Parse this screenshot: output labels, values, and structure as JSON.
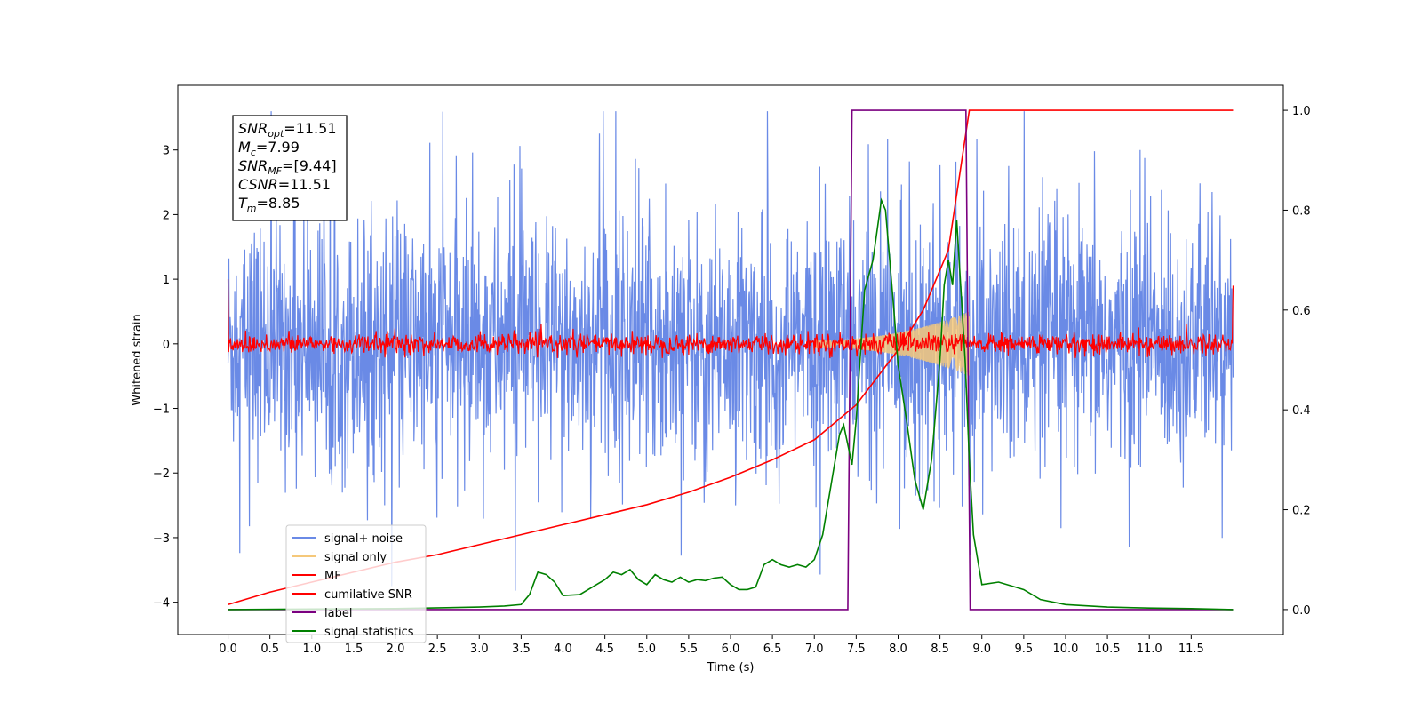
{
  "chart_data": {
    "type": "line",
    "title": "",
    "xlabel": "Time (s)",
    "ylabel": "Whitened strain",
    "xlim": [
      -0.6,
      12.6
    ],
    "ylim": [
      -4.5,
      4.0
    ],
    "y2lim": [
      -0.05,
      1.05
    ],
    "xticks": [
      "0.0",
      "0.5",
      "1.0",
      "1.5",
      "2.0",
      "2.5",
      "3.0",
      "3.5",
      "4.0",
      "4.5",
      "5.0",
      "5.5",
      "6.0",
      "6.5",
      "7.0",
      "7.5",
      "8.0",
      "8.5",
      "9.0",
      "9.5",
      "10.0",
      "10.5",
      "11.0",
      "11.5"
    ],
    "yticks": [
      "3",
      "2",
      "1",
      "0",
      "−1",
      "−2",
      "−3",
      "−4"
    ],
    "y2ticks": [
      "1.0",
      "0.8",
      "0.6",
      "0.4",
      "0.2",
      "0.0"
    ],
    "grid": false,
    "legend_position": "lower-left",
    "series": [
      {
        "name": "signal+ noise",
        "axis": "left",
        "color": "#6a8ae6",
        "description": "noise band approx ±1.8 around 0 with spikes up to 3.6 and down to -4.1 over 0–12 s"
      },
      {
        "name": "signal only",
        "axis": "left",
        "color": "#f5c87a",
        "description": "chirp envelope growing from ~7.0 s to peak amplitude ~0.5 at 8.85 s, then zero"
      },
      {
        "name": "MF",
        "axis": "left",
        "color": "#ff0000",
        "description": "matched filter output noise approx ±0.2 around 0, ends at 0.9 at 12.0 s, starts at 1.0 at 0 s"
      },
      {
        "name": "cumilative SNR",
        "axis": "right",
        "color": "#ff0000",
        "x": [
          0.0,
          0.5,
          1.0,
          1.5,
          2.0,
          2.5,
          3.0,
          3.5,
          4.0,
          4.5,
          5.0,
          5.5,
          6.0,
          6.5,
          7.0,
          7.5,
          8.0,
          8.3,
          8.6,
          8.85,
          12.0
        ],
        "y": [
          0.01,
          0.035,
          0.055,
          0.075,
          0.095,
          0.11,
          0.13,
          0.15,
          0.17,
          0.19,
          0.21,
          0.235,
          0.265,
          0.3,
          0.34,
          0.41,
          0.52,
          0.6,
          0.72,
          1.0,
          1.0
        ]
      },
      {
        "name": "label",
        "axis": "right",
        "color": "#7b0080",
        "x": [
          0.0,
          7.4,
          7.45,
          8.81,
          8.86,
          12.0
        ],
        "y": [
          0.0,
          0.0,
          1.0,
          1.0,
          0.0,
          0.0
        ]
      },
      {
        "name": "signal statistics",
        "axis": "right",
        "color": "#008000",
        "x": [
          0.0,
          1.0,
          2.0,
          3.0,
          3.3,
          3.5,
          3.6,
          3.7,
          3.8,
          3.9,
          4.0,
          4.2,
          4.4,
          4.5,
          4.6,
          4.7,
          4.8,
          4.9,
          5.0,
          5.1,
          5.2,
          5.3,
          5.4,
          5.5,
          5.6,
          5.7,
          5.8,
          5.9,
          6.0,
          6.1,
          6.2,
          6.3,
          6.4,
          6.5,
          6.6,
          6.7,
          6.8,
          6.9,
          7.0,
          7.1,
          7.2,
          7.3,
          7.35,
          7.45,
          7.5,
          7.6,
          7.7,
          7.8,
          7.85,
          7.9,
          7.95,
          8.0,
          8.1,
          8.2,
          8.3,
          8.4,
          8.5,
          8.55,
          8.6,
          8.65,
          8.7,
          8.8,
          8.85,
          8.9,
          9.0,
          9.2,
          9.5,
          9.7,
          10.0,
          10.5,
          11.0,
          11.5,
          12.0
        ],
        "y": [
          0.0,
          0.001,
          0.002,
          0.005,
          0.007,
          0.01,
          0.03,
          0.075,
          0.07,
          0.055,
          0.028,
          0.03,
          0.05,
          0.06,
          0.075,
          0.07,
          0.08,
          0.06,
          0.05,
          0.07,
          0.06,
          0.055,
          0.065,
          0.055,
          0.06,
          0.058,
          0.063,
          0.065,
          0.05,
          0.04,
          0.04,
          0.045,
          0.09,
          0.1,
          0.09,
          0.085,
          0.09,
          0.085,
          0.1,
          0.15,
          0.25,
          0.35,
          0.37,
          0.29,
          0.38,
          0.64,
          0.7,
          0.82,
          0.8,
          0.7,
          0.6,
          0.49,
          0.38,
          0.26,
          0.2,
          0.3,
          0.5,
          0.65,
          0.7,
          0.65,
          0.78,
          0.5,
          0.3,
          0.15,
          0.05,
          0.055,
          0.04,
          0.02,
          0.01,
          0.005,
          0.003,
          0.002,
          0.0
        ]
      }
    ]
  },
  "annotation": {
    "lines": [
      {
        "base": "SNR",
        "sub": "opt",
        "rest": "=11.51"
      },
      {
        "base": "M",
        "sub": "c",
        "rest": "=7.99"
      },
      {
        "base": "SNR",
        "sub": "MF",
        "rest": "=[9.44]"
      },
      {
        "base": "CSNR",
        "sub": "",
        "rest": "=11.51"
      },
      {
        "base": "T",
        "sub": "m",
        "rest": "=8.85"
      }
    ]
  },
  "legend": [
    {
      "label": "signal+ noise",
      "color": "#6a8ae6"
    },
    {
      "label": "signal only",
      "color": "#f5c87a"
    },
    {
      "label": "MF",
      "color": "#ff0000"
    },
    {
      "label": "cumilative SNR",
      "color": "#ff0000"
    },
    {
      "label": "label",
      "color": "#7b0080"
    },
    {
      "label": "signal statistics",
      "color": "#008000"
    }
  ]
}
